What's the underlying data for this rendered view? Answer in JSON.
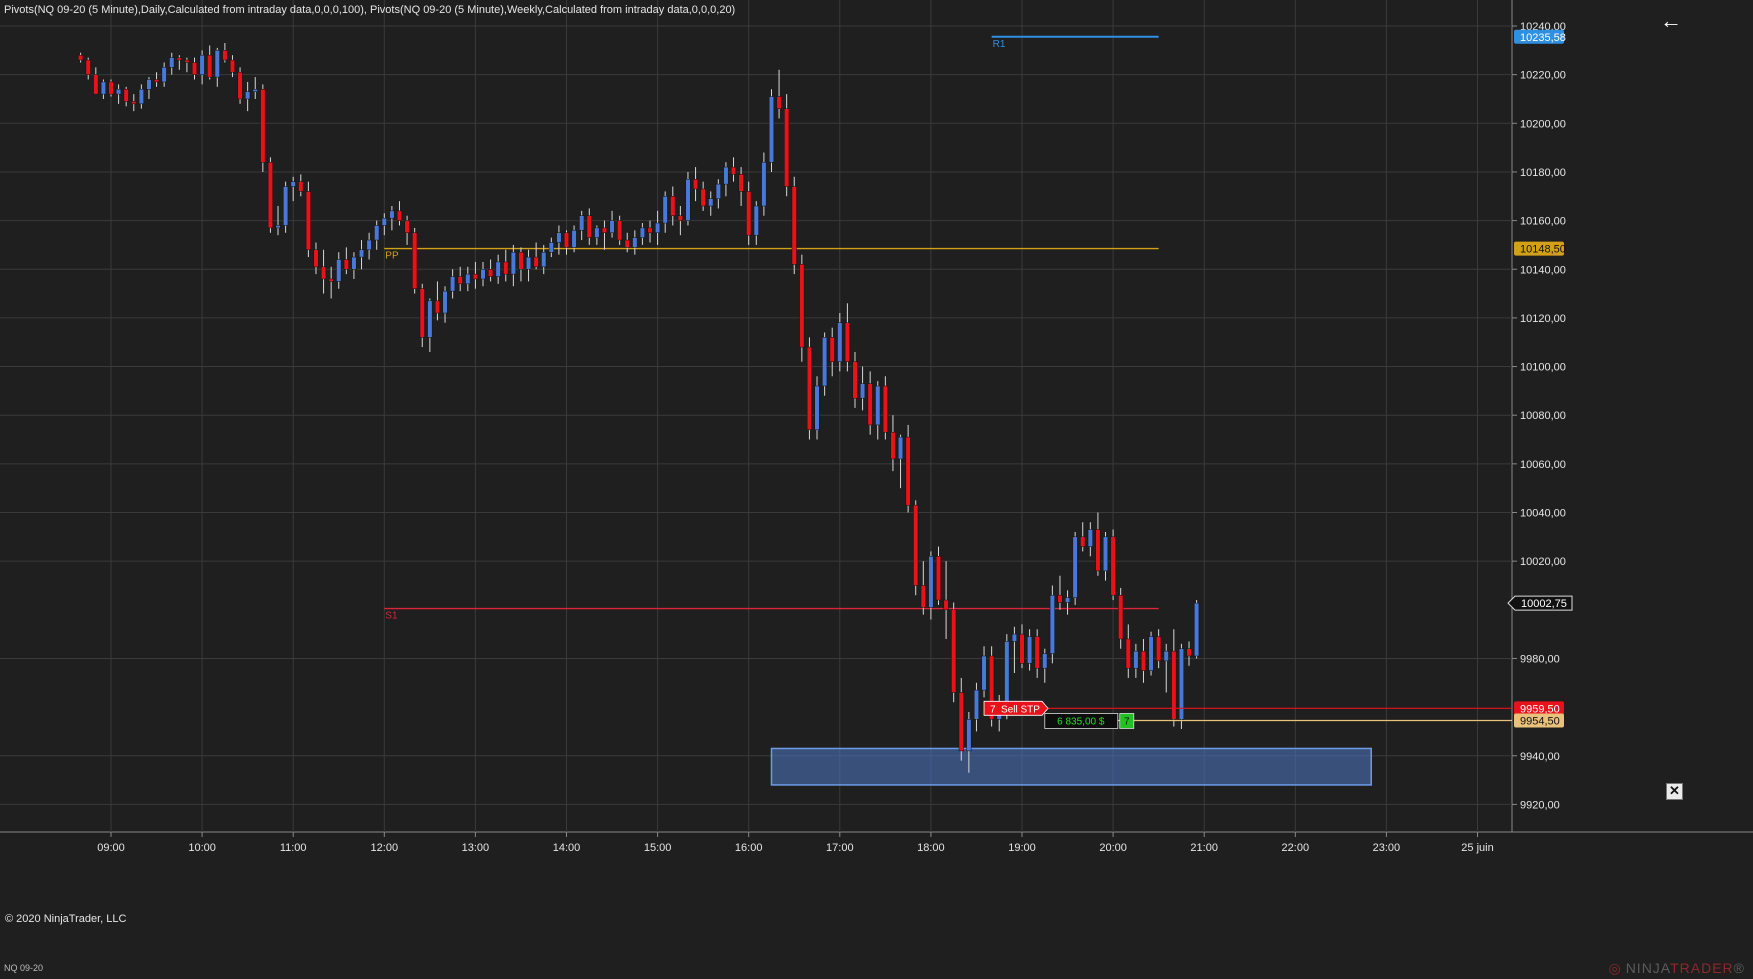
{
  "header": {
    "indicators": "Pivots(NQ 09-20 (5 Minute),Daily,Calculated from intraday data,0,0,0,100), Pivots(NQ 09-20 (5 Minute),Weekly,Calculated from intraday data,0,0,0,20)"
  },
  "footer": {
    "copyright": "© 2020 NinjaTrader, LLC",
    "instrument": "NQ 09-20",
    "brand_prefix": "NINJA",
    "brand_suffix": "TRADER",
    "brand_mark": "®"
  },
  "icons": {
    "back": "arrow-left-icon",
    "close": "close-icon",
    "logo": "ninjatrader-logo-icon"
  },
  "colors": {
    "background": "#1f1f1f",
    "grid": "#3a3a3a",
    "up_candle": "#4a78d8",
    "down_candle": "#e8121a",
    "wick": "#d8d8d8",
    "pivot_pp": "#d4a017",
    "pivot_r1": "#2f8fe0",
    "pivot_s1": "#d9263a",
    "zone_fill": "#4f79c7",
    "zone_stroke": "#6e9be8",
    "sell_stop": "#e8121a",
    "position": "#e8c17a",
    "position_fill": "#22c022"
  },
  "chart_data": {
    "type": "candlestick",
    "title": "",
    "instrument": "NQ 09-20",
    "interval": "5 Minute",
    "xlabel": "",
    "ylabel": "",
    "ylim": [
      9912,
      10246
    ],
    "xlim": [
      "08:40",
      "25 juin 00:25"
    ],
    "grid": true,
    "y_ticks": [
      "10240,00",
      "10220,00",
      "10200,00",
      "10180,00",
      "10160,00",
      "10140,00",
      "10120,00",
      "10100,00",
      "10080,00",
      "10060,00",
      "10040,00",
      "10020,00",
      "9980,00",
      "9940,00",
      "9920,00"
    ],
    "x_ticks": [
      "09:00",
      "10:00",
      "11:00",
      "12:00",
      "13:00",
      "14:00",
      "15:00",
      "16:00",
      "17:00",
      "18:00",
      "19:00",
      "20:00",
      "21:00",
      "22:00",
      "23:00",
      "25 juin"
    ],
    "candle_start": "08:40",
    "candle_interval_min": 5,
    "candles": [
      [
        10228,
        10229,
        10225,
        10226
      ],
      [
        10226,
        10227,
        10218,
        10220
      ],
      [
        10220,
        10223,
        10212,
        10212
      ],
      [
        10212,
        10218,
        10210,
        10217
      ],
      [
        10217,
        10218,
        10211,
        10212
      ],
      [
        10212,
        10216,
        10208,
        10214
      ],
      [
        10214,
        10215,
        10207,
        10209
      ],
      [
        10209,
        10212,
        10205,
        10208
      ],
      [
        10208,
        10216,
        10206,
        10214
      ],
      [
        10214,
        10219,
        10210,
        10218
      ],
      [
        10218,
        10221,
        10215,
        10217
      ],
      [
        10217,
        10225,
        10215,
        10223
      ],
      [
        10223,
        10229,
        10220,
        10227
      ],
      [
        10227,
        10228,
        10222,
        10226
      ],
      [
        10226,
        10227,
        10221,
        10225
      ],
      [
        10225,
        10227,
        10218,
        10220
      ],
      [
        10220,
        10230,
        10216,
        10228
      ],
      [
        10228,
        10232,
        10218,
        10219
      ],
      [
        10219,
        10231,
        10215,
        10230
      ],
      [
        10230,
        10233,
        10225,
        10226
      ],
      [
        10226,
        10228,
        10219,
        10221
      ],
      [
        10221,
        10223,
        10208,
        10210
      ],
      [
        10210,
        10217,
        10205,
        10213
      ],
      [
        10213,
        10219,
        10210,
        10214
      ],
      [
        10214,
        10216,
        10180,
        10184
      ],
      [
        10184,
        10186,
        10155,
        10157
      ],
      [
        10157,
        10166,
        10154,
        10158
      ],
      [
        10158,
        10176,
        10155,
        10174
      ],
      [
        10174,
        10178,
        10168,
        10176
      ],
      [
        10176,
        10179,
        10170,
        10172
      ],
      [
        10172,
        10176,
        10145,
        10148
      ],
      [
        10148,
        10151,
        10138,
        10141
      ],
      [
        10141,
        10148,
        10130,
        10136
      ],
      [
        10136,
        10141,
        10128,
        10135
      ],
      [
        10135,
        10147,
        10132,
        10144
      ],
      [
        10144,
        10149,
        10138,
        10140
      ],
      [
        10140,
        10147,
        10136,
        10145
      ],
      [
        10145,
        10152,
        10140,
        10148
      ],
      [
        10148,
        10155,
        10144,
        10152
      ],
      [
        10152,
        10160,
        10148,
        10158
      ],
      [
        10158,
        10163,
        10154,
        10161
      ],
      [
        10161,
        10166,
        10156,
        10164
      ],
      [
        10164,
        10168,
        10158,
        10160
      ],
      [
        10160,
        10162,
        10150,
        10155
      ],
      [
        10155,
        10157,
        10130,
        10132
      ],
      [
        10132,
        10134,
        10108,
        10112
      ],
      [
        10112,
        10128,
        10106,
        10127
      ],
      [
        10127,
        10135,
        10119,
        10122
      ],
      [
        10122,
        10133,
        10118,
        10131
      ],
      [
        10131,
        10140,
        10128,
        10137
      ],
      [
        10137,
        10141,
        10131,
        10134
      ],
      [
        10134,
        10141,
        10131,
        10138
      ],
      [
        10138,
        10143,
        10132,
        10136
      ],
      [
        10136,
        10143,
        10133,
        10140
      ],
      [
        10140,
        10144,
        10135,
        10137
      ],
      [
        10137,
        10146,
        10134,
        10143
      ],
      [
        10143,
        10148,
        10135,
        10138
      ],
      [
        10138,
        10150,
        10133,
        10147
      ],
      [
        10147,
        10149,
        10135,
        10140
      ],
      [
        10140,
        10148,
        10135,
        10145
      ],
      [
        10145,
        10151,
        10140,
        10141
      ],
      [
        10141,
        10150,
        10138,
        10147
      ],
      [
        10147,
        10153,
        10145,
        10151
      ],
      [
        10151,
        10158,
        10146,
        10155
      ],
      [
        10155,
        10156,
        10146,
        10149
      ],
      [
        10149,
        10158,
        10147,
        10156
      ],
      [
        10156,
        10164,
        10152,
        10162
      ],
      [
        10162,
        10165,
        10150,
        10153
      ],
      [
        10153,
        10158,
        10150,
        10157
      ],
      [
        10157,
        10160,
        10148,
        10155
      ],
      [
        10155,
        10164,
        10153,
        10160
      ],
      [
        10160,
        10162,
        10150,
        10152
      ],
      [
        10152,
        10155,
        10147,
        10149
      ],
      [
        10149,
        10156,
        10146,
        10153
      ],
      [
        10153,
        10159,
        10150,
        10157
      ],
      [
        10157,
        10160,
        10151,
        10155
      ],
      [
        10155,
        10164,
        10150,
        10159
      ],
      [
        10159,
        10172,
        10155,
        10170
      ],
      [
        10170,
        10174,
        10158,
        10162
      ],
      [
        10162,
        10166,
        10154,
        10160
      ],
      [
        10160,
        10180,
        10158,
        10177
      ],
      [
        10177,
        10182,
        10168,
        10173
      ],
      [
        10173,
        10176,
        10164,
        10166
      ],
      [
        10166,
        10172,
        10162,
        10169
      ],
      [
        10169,
        10177,
        10165,
        10175
      ],
      [
        10175,
        10184,
        10170,
        10182
      ],
      [
        10182,
        10186,
        10176,
        10179
      ],
      [
        10179,
        10182,
        10166,
        10172
      ],
      [
        10172,
        10176,
        10150,
        10154
      ],
      [
        10154,
        10168,
        10150,
        10166
      ],
      [
        10166,
        10188,
        10162,
        10184
      ],
      [
        10184,
        10214,
        10180,
        10211
      ],
      [
        10211,
        10222,
        10202,
        10206
      ],
      [
        10206,
        10212,
        10170,
        10174
      ],
      [
        10174,
        10178,
        10138,
        10142
      ],
      [
        10142,
        10146,
        10102,
        10108
      ],
      [
        10108,
        10112,
        10070,
        10074
      ],
      [
        10074,
        10096,
        10070,
        10092
      ],
      [
        10092,
        10114,
        10088,
        10112
      ],
      [
        10112,
        10116,
        10096,
        10102
      ],
      [
        10102,
        10122,
        10098,
        10118
      ],
      [
        10118,
        10126,
        10098,
        10102
      ],
      [
        10102,
        10106,
        10083,
        10087
      ],
      [
        10087,
        10100,
        10082,
        10093
      ],
      [
        10093,
        10098,
        10072,
        10076
      ],
      [
        10076,
        10094,
        10070,
        10092
      ],
      [
        10092,
        10096,
        10070,
        10073
      ],
      [
        10073,
        10080,
        10057,
        10062
      ],
      [
        10062,
        10072,
        10050,
        10071
      ],
      [
        10071,
        10076,
        10040,
        10043
      ],
      [
        10043,
        10045,
        10006,
        10010
      ],
      [
        10010,
        10020,
        9998,
        10001
      ],
      [
        10001,
        10024,
        9996,
        10022
      ],
      [
        10022,
        10026,
        10002,
        10004
      ],
      [
        10004,
        10020,
        9988,
        10000
      ],
      [
        10000,
        10003,
        9962,
        9966
      ],
      [
        9966,
        9972,
        9938,
        9942
      ],
      [
        9942,
        9958,
        9933,
        9955
      ],
      [
        9955,
        9970,
        9950,
        9967
      ],
      [
        9967,
        9985,
        9964,
        9981
      ],
      [
        9981,
        9985,
        9952,
        9955
      ],
      [
        9955,
        9965,
        9950,
        9958
      ],
      [
        9958,
        9990,
        9955,
        9987
      ],
      [
        9987,
        9993,
        9974,
        9990
      ],
      [
        9990,
        9994,
        9976,
        9978
      ],
      [
        9978,
        9992,
        9975,
        9989
      ],
      [
        9989,
        9992,
        9972,
        9976
      ],
      [
        9976,
        9984,
        9970,
        9982
      ],
      [
        9982,
        10010,
        9978,
        10006
      ],
      [
        10006,
        10014,
        10000,
        10003
      ],
      [
        10003,
        10008,
        9998,
        10005
      ],
      [
        10005,
        10032,
        10002,
        10030
      ],
      [
        10030,
        10036,
        10024,
        10026
      ],
      [
        10026,
        10036,
        10022,
        10033
      ],
      [
        10033,
        10040,
        10014,
        10016
      ],
      [
        10016,
        10032,
        10012,
        10030
      ],
      [
        10030,
        10033,
        10004,
        10006
      ],
      [
        10006,
        10009,
        9984,
        9988
      ],
      [
        9988,
        9994,
        9972,
        9976
      ],
      [
        9976,
        9986,
        9972,
        9983
      ],
      [
        9983,
        9988,
        9970,
        9975
      ],
      [
        9975,
        9991,
        9973,
        9989
      ],
      [
        9989,
        9992,
        9976,
        9979
      ],
      [
        9979,
        9986,
        9966,
        9983
      ],
      [
        9983,
        9992,
        9952,
        9955
      ],
      [
        9955,
        9986,
        9951,
        9984
      ],
      [
        9984,
        9987,
        9977,
        9981
      ],
      [
        9981,
        10004,
        9980,
        10002.75
      ]
    ],
    "pivots": [
      {
        "label": "R1",
        "value": 10235.58,
        "price_label": "10235,58",
        "start": "18:40",
        "end": "20:30"
      },
      {
        "label": "PP",
        "value": 10148.5,
        "price_label": "10148,50",
        "start": "12:00",
        "end": "20:30"
      },
      {
        "label": "S1",
        "value": 10000.5,
        "price_label": "",
        "start": "12:00",
        "end": "20:30"
      }
    ],
    "last_price": {
      "value": 10002.75,
      "label": "10002,75"
    },
    "zone": {
      "y_top": 9943,
      "y_bottom": 9928,
      "start": "16:15",
      "end": "22:50"
    },
    "orders": [
      {
        "type": "Sell STP",
        "quantity": "7",
        "price": 9959.5,
        "price_label": "9959,50"
      }
    ],
    "position": {
      "quantity": "7",
      "pnl": "6 835,00 $",
      "avg_price": 9954.5,
      "price_label": "9954,50"
    }
  }
}
